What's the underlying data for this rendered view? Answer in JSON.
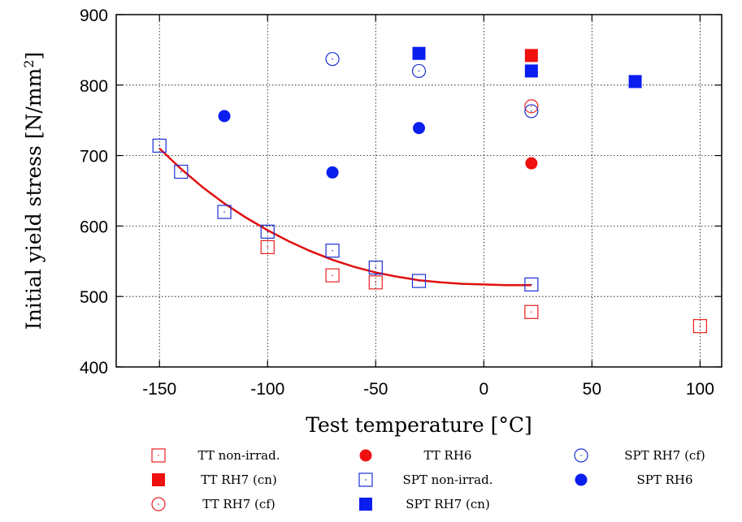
{
  "chart_data": {
    "type": "scatter",
    "title": "",
    "xlabel": "Test temperature [°C]",
    "ylabel": "Initial yield stress [N/mm",
    "ylabel_sup": "2",
    "ylabel_end": "]",
    "xlim": [
      -170,
      110
    ],
    "ylim": [
      400,
      900
    ],
    "xticks": [
      -150,
      -100,
      -50,
      0,
      50,
      100
    ],
    "yticks": [
      400,
      500,
      600,
      700,
      800,
      900
    ],
    "grid": true,
    "legend_position": "bottom",
    "series": [
      {
        "name": "TT non-irrad.",
        "marker": "square-open",
        "color": "#e8201e",
        "points": [
          [
            -100,
            570
          ],
          [
            -70,
            530
          ],
          [
            -50,
            520
          ],
          [
            22,
            478
          ],
          [
            100,
            458
          ]
        ]
      },
      {
        "name": "TT RH7 (cn)",
        "marker": "square-filled",
        "color": "#f01010",
        "points": [
          [
            22,
            842
          ]
        ]
      },
      {
        "name": "TT RH7 (cf)",
        "marker": "circle-open",
        "color": "#e8201e",
        "points": [
          [
            22,
            770
          ]
        ]
      },
      {
        "name": "TT RH6",
        "marker": "circle-filled",
        "color": "#f01010",
        "points": [
          [
            22,
            689
          ]
        ]
      },
      {
        "name": "SPT non-irrad.",
        "marker": "square-open",
        "color": "#1c2fd4",
        "points": [
          [
            -150,
            714
          ],
          [
            -140,
            677
          ],
          [
            -120,
            620
          ],
          [
            -100,
            592
          ],
          [
            -70,
            565
          ],
          [
            -50,
            541
          ],
          [
            -30,
            522
          ],
          [
            22,
            517
          ]
        ]
      },
      {
        "name": "SPT RH7 (cn)",
        "marker": "square-filled",
        "color": "#0a1ef0",
        "points": [
          [
            -30,
            845
          ],
          [
            22,
            820
          ],
          [
            70,
            805
          ]
        ]
      },
      {
        "name": "SPT RH7 (cf)",
        "marker": "circle-open",
        "color": "#1c2fd4",
        "points": [
          [
            -70,
            837
          ],
          [
            -30,
            820
          ],
          [
            22,
            763
          ]
        ]
      },
      {
        "name": "SPT RH6",
        "marker": "circle-filled",
        "color": "#0a1ef0",
        "points": [
          [
            -120,
            756
          ],
          [
            -70,
            676
          ],
          [
            -30,
            739
          ]
        ]
      }
    ],
    "fit_curve": {
      "color": "#e01010",
      "points": [
        [
          -150,
          710
        ],
        [
          -140,
          681
        ],
        [
          -130,
          655
        ],
        [
          -120,
          632
        ],
        [
          -110,
          612
        ],
        [
          -100,
          594
        ],
        [
          -90,
          578
        ],
        [
          -80,
          564
        ],
        [
          -70,
          552
        ],
        [
          -60,
          542
        ],
        [
          -50,
          534
        ],
        [
          -40,
          528
        ],
        [
          -30,
          523
        ],
        [
          -20,
          520
        ],
        [
          -10,
          518
        ],
        [
          0,
          517
        ],
        [
          10,
          516
        ],
        [
          22,
          516
        ]
      ]
    },
    "legend_columns": [
      [
        "TT non-irrad.",
        "TT RH7 (cn)",
        "TT RH7 (cf)"
      ],
      [
        "TT RH6",
        "SPT non-irrad.",
        "SPT RH7 (cn)"
      ],
      [
        "SPT RH7 (cf)",
        "SPT RH6"
      ]
    ]
  }
}
